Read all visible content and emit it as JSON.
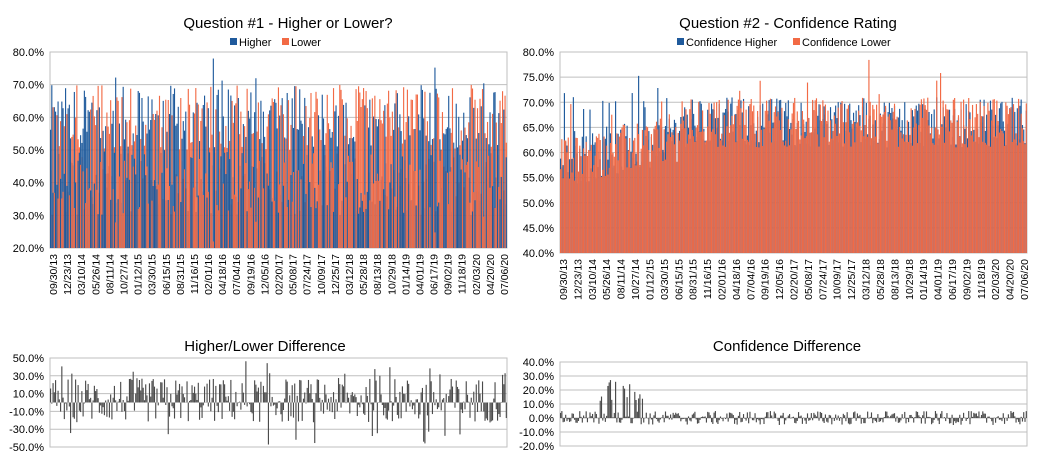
{
  "colors": {
    "higher": "#1f5a9c",
    "lower": "#f26a45",
    "diff": "#4a4a4a",
    "grid": "#bfbfbf",
    "axis": "#808080"
  },
  "chart_data": [
    {
      "id": "q1",
      "type": "bar",
      "title": "Question #1 - Higher or Lower?",
      "legend_position": "top",
      "series": [
        {
          "name": "Higher",
          "color": "#1f5a9c"
        },
        {
          "name": "Lower",
          "color": "#f26a45"
        }
      ],
      "ylim": [
        20,
        80
      ],
      "yticks": [
        "20.0%",
        "30.0%",
        "40.0%",
        "50.0%",
        "60.0%",
        "70.0%",
        "80.0%"
      ],
      "xticks": [
        "09/30/13",
        "12/23/13",
        "03/10/14",
        "05/26/14",
        "08/11/14",
        "10/27/14",
        "01/12/15",
        "03/30/15",
        "06/15/15",
        "08/31/15",
        "11/16/15",
        "02/01/16",
        "04/18/16",
        "07/04/16",
        "09/19/16",
        "12/05/16",
        "02/20/17",
        "05/08/17",
        "07/24/17",
        "10/09/17",
        "12/25/17",
        "03/12/18",
        "05/28/18",
        "08/13/18",
        "10/29/18",
        "01/14/19",
        "04/01/19",
        "06/17/19",
        "09/02/19",
        "11/18/19",
        "02/03/20",
        "04/20/20",
        "07/06/20"
      ],
      "grid": true
    },
    {
      "id": "q2",
      "type": "bar",
      "title": "Question #2 - Confidence Rating",
      "legend_position": "top",
      "series": [
        {
          "name": "Confidence Higher",
          "color": "#1f5a9c"
        },
        {
          "name": "Confidence Lower",
          "color": "#f26a45"
        }
      ],
      "ylim": [
        40,
        80
      ],
      "yticks": [
        "40.0%",
        "45.0%",
        "50.0%",
        "55.0%",
        "60.0%",
        "65.0%",
        "70.0%",
        "75.0%",
        "80.0%"
      ],
      "xticks": [
        "09/30/13",
        "12/23/13",
        "03/10/14",
        "05/26/14",
        "08/11/14",
        "10/27/14",
        "01/12/15",
        "03/30/15",
        "06/15/15",
        "08/31/15",
        "11/16/15",
        "02/01/16",
        "04/18/16",
        "07/04/16",
        "09/19/16",
        "12/05/16",
        "02/20/17",
        "05/08/17",
        "07/24/17",
        "10/09/17",
        "12/25/17",
        "03/12/18",
        "05/28/18",
        "08/13/18",
        "10/29/18",
        "01/14/19",
        "04/01/19",
        "06/17/19",
        "09/02/19",
        "11/18/19",
        "02/03/20",
        "04/20/20",
        "07/06/20"
      ],
      "grid": true
    },
    {
      "id": "d1",
      "type": "bar",
      "title": "Higher/Lower Difference",
      "ylim": [
        -50,
        50
      ],
      "yticks": [
        "-50.0%",
        "-30.0%",
        "-10.0%",
        "10.0%",
        "30.0%",
        "50.0%"
      ],
      "grid": true
    },
    {
      "id": "d2",
      "type": "bar",
      "title": "Confidence Difference",
      "ylim": [
        -20,
        40
      ],
      "yticks": [
        "-20.0%",
        "-10.0%",
        "0.0%",
        "10.0%",
        "20.0%",
        "30.0%",
        "40.0%"
      ],
      "grid": true
    }
  ]
}
